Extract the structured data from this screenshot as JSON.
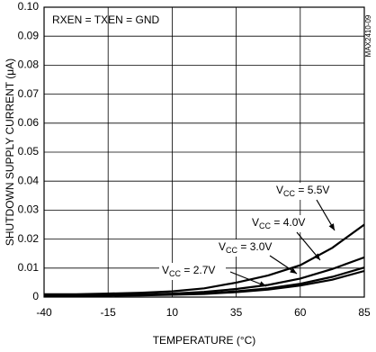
{
  "chart_data": {
    "type": "line",
    "xlabel": "TEMPERATURE (°C)",
    "ylabel": "SHUTDOWN SUPPLY CURRENT (μA)",
    "annotations": [
      "RXEN = TXEN = GND",
      "MAX2410-09"
    ],
    "x": [
      -40,
      -27.5,
      -15,
      -2.5,
      10,
      22.5,
      35,
      47.5,
      60,
      72.5,
      85
    ],
    "series": [
      {
        "name": "VCC = 5.5V",
        "color": "#000000",
        "values": [
          0.001,
          0.001,
          0.0012,
          0.0015,
          0.002,
          0.003,
          0.005,
          0.0075,
          0.011,
          0.017,
          0.025
        ]
      },
      {
        "name": "VCC = 4.0V",
        "color": "#000000",
        "values": [
          0.0005,
          0.0006,
          0.0007,
          0.0009,
          0.0012,
          0.0018,
          0.0028,
          0.0042,
          0.0064,
          0.0097,
          0.0137
        ]
      },
      {
        "name": "VCC = 3.0V",
        "color": "#000000",
        "values": [
          0.0004,
          0.0005,
          0.0006,
          0.0007,
          0.0009,
          0.0013,
          0.002,
          0.003,
          0.0046,
          0.007,
          0.0102
        ]
      },
      {
        "name": "VCC = 2.7V",
        "color": "#000000",
        "values": [
          0.0003,
          0.0004,
          0.0005,
          0.0006,
          0.0008,
          0.0011,
          0.0017,
          0.0026,
          0.004,
          0.006,
          0.009
        ]
      }
    ],
    "xlim": [
      -40,
      85
    ],
    "xticks": [
      -40,
      -15,
      10,
      35,
      60,
      85
    ],
    "ylim": [
      0,
      0.1
    ],
    "yticks": [
      0,
      0.01,
      0.02,
      0.03,
      0.04,
      0.05,
      0.06,
      0.07,
      0.08,
      0.09,
      {
        "value": 0.1,
        "label": "0.10"
      }
    ],
    "grid": true
  }
}
